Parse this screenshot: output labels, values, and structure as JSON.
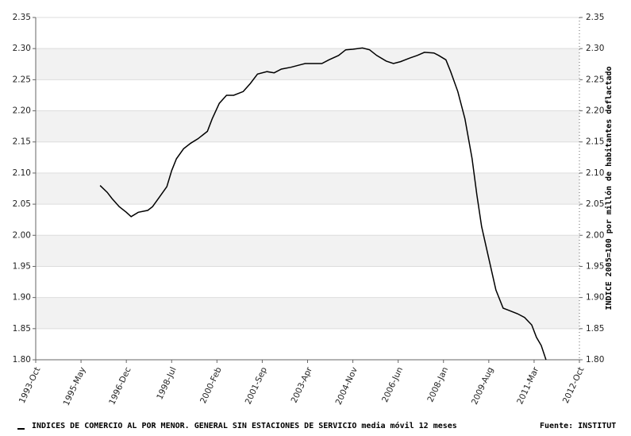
{
  "chart_data": {
    "type": "line",
    "x": [
      "1996-Jan",
      "1996-Apr",
      "1996-Jun",
      "1996-Sep",
      "1996-Dec",
      "1997-Feb",
      "1997-May",
      "1997-Sep",
      "1997-Nov",
      "1998-Feb",
      "1998-May",
      "1998-Jul",
      "1998-Sep",
      "1998-Dec",
      "1999-Mar",
      "1999-Jun",
      "1999-Oct",
      "1999-Dec",
      "2000-Mar",
      "2000-Jun",
      "2000-Sep",
      "2001-Jan",
      "2001-Apr",
      "2001-Jul",
      "2001-Nov",
      "2002-Feb",
      "2002-May",
      "2002-Sep",
      "2002-Dec",
      "2003-Mar",
      "2003-Jul",
      "2003-Oct",
      "2004-Jan",
      "2004-May",
      "2004-Aug",
      "2004-Nov",
      "2005-Mar",
      "2005-Jun",
      "2005-Sep",
      "2006-Jan",
      "2006-Apr",
      "2006-Jul",
      "2006-Nov",
      "2007-Feb",
      "2007-May",
      "2007-Sep",
      "2007-Nov",
      "2008-Feb",
      "2008-Apr",
      "2008-Jul",
      "2008-Oct",
      "2009-Jan",
      "2009-Mar",
      "2009-May",
      "2009-Aug",
      "2009-Nov",
      "2010-Feb",
      "2010-Apr",
      "2010-Aug",
      "2010-Nov",
      "2011-Feb",
      "2011-Apr",
      "2011-Jun",
      "2011-Aug"
    ],
    "series": [
      {
        "name": "INDICES DE COMERCIO AL POR MENOR. GENERAL SIN ESTACIONES DE SERVICIO media móvil 12 meses",
        "color": "#000000",
        "values": [
          2.08,
          2.069,
          2.059,
          2.046,
          2.037,
          2.03,
          2.037,
          2.04,
          2.046,
          2.062,
          2.078,
          2.104,
          2.123,
          2.139,
          2.148,
          2.155,
          2.167,
          2.187,
          2.212,
          2.225,
          2.225,
          2.231,
          2.244,
          2.259,
          2.263,
          2.261,
          2.267,
          2.27,
          2.273,
          2.276,
          2.276,
          2.276,
          2.282,
          2.289,
          2.298,
          2.299,
          2.301,
          2.298,
          2.289,
          2.28,
          2.276,
          2.279,
          2.285,
          2.289,
          2.294,
          2.293,
          2.289,
          2.282,
          2.263,
          2.231,
          2.187,
          2.123,
          2.065,
          2.014,
          1.963,
          1.912,
          1.883,
          1.88,
          1.874,
          1.868,
          1.856,
          1.836,
          1.823,
          1.8
        ]
      }
    ],
    "source": "Fuente: INSTITUT",
    "y2_label": "INDICE 2005=100 por millón de habitantes deflactado",
    "xlim": [
      "1993-Oct",
      "2012-Oct"
    ],
    "xticks": [
      "1993-Oct",
      "1995-May",
      "1996-Dec",
      "1998-Jul",
      "2000-Feb",
      "2001-Sep",
      "2003-Apr",
      "2004-Nov",
      "2006-Jun",
      "2008-Jan",
      "2009-Aug",
      "2011-Mar",
      "2012-Oct"
    ],
    "ylim": [
      1.8,
      2.35
    ],
    "yticks": [
      {
        "value": 1.8,
        "label": "1.80"
      },
      {
        "value": 1.85,
        "label": "1.85"
      },
      {
        "value": 1.9,
        "label": "1.90"
      },
      {
        "value": 1.95,
        "label": "1.95"
      },
      {
        "value": 2.0,
        "label": "2.00"
      },
      {
        "value": 2.05,
        "label": "2.05"
      },
      {
        "value": 2.1,
        "label": "2.10"
      },
      {
        "value": 2.15,
        "label": "2.15"
      },
      {
        "value": 2.2,
        "label": "2.20"
      },
      {
        "value": 2.25,
        "label": "2.25"
      },
      {
        "value": 2.3,
        "label": "2.30"
      },
      {
        "value": 2.35,
        "label": "2.35"
      }
    ],
    "y2lim": [
      1.8,
      2.35
    ],
    "y2ticks": [
      {
        "value": 1.8,
        "label": "1.80"
      },
      {
        "value": 1.85,
        "label": "1.85"
      },
      {
        "value": 1.9,
        "label": "1.90"
      },
      {
        "value": 1.95,
        "label": "1.95"
      },
      {
        "value": 2.0,
        "label": "2.00"
      },
      {
        "value": 2.05,
        "label": "2.05"
      },
      {
        "value": 2.1,
        "label": "2.10"
      },
      {
        "value": 2.15,
        "label": "2.15"
      },
      {
        "value": 2.2,
        "label": "2.20"
      },
      {
        "value": 2.25,
        "label": "2.25"
      },
      {
        "value": 2.3,
        "label": "2.30"
      },
      {
        "value": 2.35,
        "label": "2.35"
      }
    ],
    "grid": "banded"
  }
}
